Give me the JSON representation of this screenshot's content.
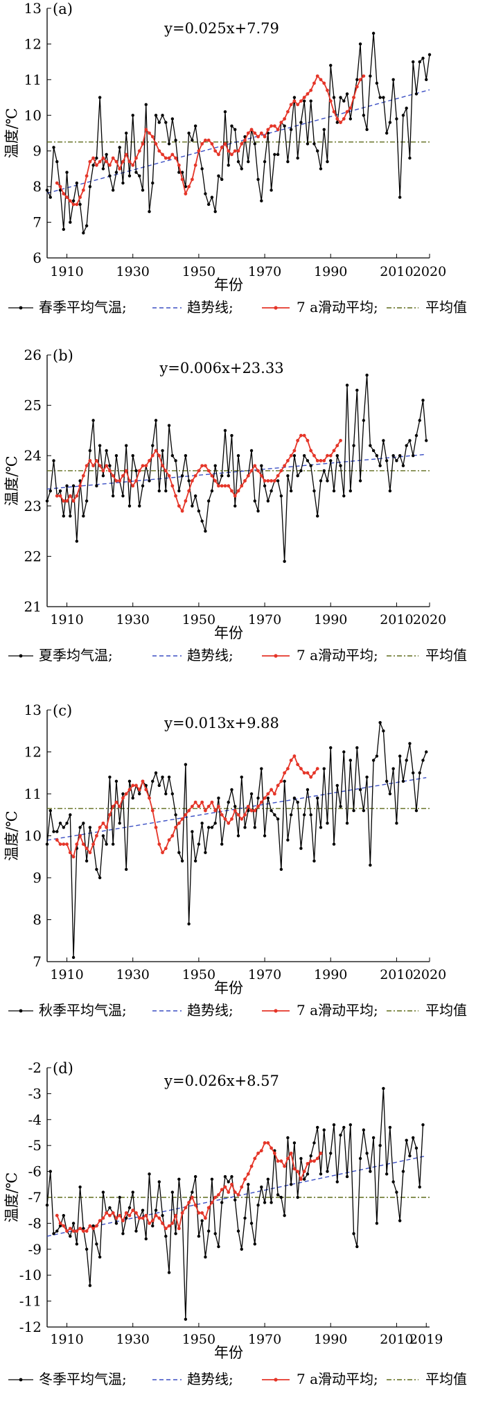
{
  "chart_data": [
    {
      "type": "line",
      "panel_label": "(a)",
      "equation": "y=0.025x+7.79",
      "xlabel": "年份",
      "ylabel": "温度/℃",
      "ylim": [
        6,
        13
      ],
      "yticks": [
        6,
        7,
        8,
        9,
        10,
        11,
        12,
        13
      ],
      "xlim": [
        1904,
        2020
      ],
      "xticks": [
        {
          "v": 1910,
          "t": "1910"
        },
        {
          "v": 1930,
          "t": "1930"
        },
        {
          "v": 1950,
          "t": "1950"
        },
        {
          "v": 1970,
          "t": "1970"
        },
        {
          "v": 1990,
          "t": "1990"
        },
        {
          "v": 2010,
          "t": "2010"
        },
        {
          "v": 2020,
          "t": "2020"
        }
      ],
      "mean": 9.25,
      "trend": {
        "slope": 0.025,
        "intercept": 7.79
      },
      "legend": [
        "春季平均气温;",
        "趋势线;",
        "7 a滑动平均;",
        "平均值"
      ],
      "series": [
        {
          "name": "春季平均气温",
          "x_start": 1904,
          "values": [
            7.9,
            7.7,
            9.1,
            8.7,
            7.9,
            6.8,
            8.4,
            7.0,
            7.6,
            8.1,
            7.5,
            6.7,
            6.9,
            8.0,
            8.6,
            8.8,
            10.5,
            8.5,
            8.9,
            8.3,
            7.9,
            8.4,
            9.1,
            8.1,
            9.5,
            8.3,
            10.0,
            8.4,
            8.3,
            7.9,
            10.3,
            7.3,
            8.1,
            10.0,
            9.8,
            10.0,
            9.8,
            9.2,
            9.9,
            9.3,
            8.4,
            8.4,
            8.0,
            9.5,
            9.3,
            9.7,
            9.0,
            8.5,
            7.8,
            7.5,
            7.7,
            7.3,
            8.3,
            8.2,
            10.1,
            8.6,
            9.7,
            9.6,
            8.7,
            8.5,
            9.4,
            8.7,
            9.6,
            9.2,
            8.2,
            7.6,
            8.7,
            9.5,
            7.9,
            8.9,
            8.9,
            9.8,
            9.7,
            8.7,
            9.6,
            10.5,
            8.8,
            9.8,
            10.4,
            9.2,
            10.4,
            9.2,
            9.0,
            8.5,
            9.6,
            8.7,
            11.4,
            10.5,
            9.8,
            10.5,
            10.4,
            10.6,
            9.9,
            10.5,
            11.0,
            12.0,
            10.0,
            9.6,
            11.1,
            12.3,
            10.9,
            10.5,
            10.5,
            9.5,
            9.8,
            11.0,
            9.9,
            7.7,
            10.0,
            10.2,
            8.8,
            11.5,
            10.6,
            11.5,
            11.6,
            11.0,
            11.7
          ]
        },
        {
          "name": "7 a滑动平均",
          "x_start": 1907,
          "values": [
            8.1,
            8.0,
            7.8,
            7.7,
            7.6,
            7.5,
            7.5,
            7.7,
            7.9,
            8.3,
            8.7,
            8.8,
            8.6,
            8.7,
            8.8,
            8.7,
            8.6,
            8.8,
            8.7,
            8.5,
            8.7,
            8.9,
            8.7,
            8.6,
            8.8,
            9.0,
            9.2,
            9.6,
            9.5,
            9.4,
            9.2,
            9.0,
            8.9,
            8.8,
            8.8,
            8.9,
            8.8,
            8.6,
            8.2,
            7.8,
            8.0,
            8.2,
            8.6,
            9.0,
            9.2,
            9.3,
            9.3,
            9.2,
            9.0,
            8.9,
            9.1,
            9.2,
            9.0,
            8.9,
            9.0,
            9.0,
            9.2,
            9.3,
            9.5,
            9.6,
            9.5,
            9.4,
            9.5,
            9.4,
            9.6,
            9.7,
            9.7,
            9.6,
            9.8,
            9.9,
            10.1,
            10.3,
            10.4,
            10.3,
            10.4,
            10.5,
            10.6,
            10.7,
            10.9,
            11.1,
            11.0,
            10.9,
            10.7,
            10.4,
            10.1,
            9.9,
            9.8,
            9.9,
            10.1,
            10.2,
            10.5,
            10.8,
            11.0,
            11.1
          ]
        }
      ]
    },
    {
      "type": "line",
      "panel_label": "(b)",
      "equation": "y=0.006x+23.33",
      "xlabel": "年份",
      "ylabel": "温度/℃",
      "ylim": [
        21,
        26
      ],
      "yticks": [
        21,
        22,
        23,
        24,
        25,
        26
      ],
      "xlim": [
        1904,
        2020
      ],
      "xticks": [
        {
          "v": 1910,
          "t": "1910"
        },
        {
          "v": 1930,
          "t": "1930"
        },
        {
          "v": 1950,
          "t": "1950"
        },
        {
          "v": 1970,
          "t": "1970"
        },
        {
          "v": 1990,
          "t": "1990"
        },
        {
          "v": 2010,
          "t": "2010"
        },
        {
          "v": 2020,
          "t": "2020"
        }
      ],
      "mean": 23.7,
      "trend": {
        "slope": 0.006,
        "intercept": 23.33
      },
      "legend": [
        "夏季均气温;",
        "趋势线;",
        "7 a滑动平均;",
        "平均值"
      ],
      "series": [
        {
          "name": "夏季均气温",
          "x_start": 1904,
          "values": [
            23.1,
            23.3,
            23.9,
            23.2,
            23.3,
            22.8,
            23.4,
            22.8,
            23.4,
            22.3,
            23.5,
            22.8,
            23.1,
            24.1,
            24.7,
            23.4,
            24.2,
            23.6,
            24.1,
            23.8,
            23.2,
            24.0,
            23.5,
            23.2,
            24.2,
            23.0,
            24.0,
            23.7,
            23.0,
            23.4,
            23.8,
            23.5,
            24.2,
            24.7,
            23.3,
            24.1,
            23.3,
            24.6,
            24.0,
            23.9,
            23.3,
            23.6,
            24.0,
            23.5,
            23.0,
            23.2,
            22.9,
            22.7,
            22.5,
            23.1,
            23.3,
            23.8,
            23.4,
            23.6,
            24.5,
            23.6,
            24.4,
            23.0,
            24.0,
            23.4,
            23.5,
            23.6,
            24.1,
            23.1,
            22.9,
            23.8,
            23.4,
            23.1,
            23.3,
            23.5,
            23.5,
            23.2,
            21.9,
            23.6,
            23.3,
            24.0,
            23.6,
            23.7,
            24.0,
            23.9,
            23.8,
            23.3,
            22.8,
            23.5,
            23.7,
            23.5,
            23.9,
            23.3,
            24.0,
            23.8,
            23.2,
            25.4,
            23.3,
            24.2,
            25.3,
            23.5,
            24.7,
            25.6,
            24.2,
            24.1,
            24.0,
            23.8,
            24.3,
            23.9,
            23.3,
            24.0,
            23.9,
            24.0,
            23.8,
            24.2,
            24.3,
            24.0,
            24.4,
            24.7,
            25.1,
            24.3
          ]
        },
        {
          "name": "7 a滑动平均",
          "x_start": 1907,
          "values": [
            23.2,
            23.2,
            23.1,
            23.1,
            23.2,
            23.1,
            23.2,
            23.4,
            23.6,
            23.8,
            23.9,
            23.8,
            23.9,
            23.8,
            23.7,
            23.8,
            23.7,
            23.6,
            23.5,
            23.5,
            23.6,
            23.7,
            23.5,
            23.4,
            23.5,
            23.7,
            23.8,
            23.8,
            23.9,
            24.0,
            24.1,
            24.0,
            23.8,
            23.7,
            23.6,
            23.4,
            23.2,
            23.0,
            22.9,
            23.1,
            23.3,
            23.5,
            23.6,
            23.7,
            23.8,
            23.8,
            23.7,
            23.6,
            23.5,
            23.4,
            23.4,
            23.4,
            23.4,
            23.3,
            23.2,
            23.3,
            23.4,
            23.5,
            23.6,
            23.7,
            23.8,
            23.7,
            23.6,
            23.5,
            23.5,
            23.5,
            23.5,
            23.6,
            23.7,
            23.8,
            23.9,
            24.0,
            24.1,
            24.3,
            24.4,
            24.4,
            24.3,
            24.1,
            24.0,
            23.9,
            23.9,
            23.9,
            24.0,
            24.0,
            24.1,
            24.2,
            24.3
          ]
        }
      ]
    },
    {
      "type": "line",
      "panel_label": "(c)",
      "equation": "y=0.013x+9.88",
      "xlabel": "年份",
      "ylabel": "温度/℃",
      "ylim": [
        7,
        13
      ],
      "yticks": [
        7,
        8,
        9,
        10,
        11,
        12,
        13
      ],
      "xlim": [
        1904,
        2020
      ],
      "xticks": [
        {
          "v": 1910,
          "t": "1910"
        },
        {
          "v": 1930,
          "t": "1930"
        },
        {
          "v": 1950,
          "t": "1950"
        },
        {
          "v": 1970,
          "t": "1970"
        },
        {
          "v": 1990,
          "t": "1990"
        },
        {
          "v": 2010,
          "t": "2010"
        },
        {
          "v": 2020,
          "t": "2020"
        }
      ],
      "mean": 10.65,
      "trend": {
        "slope": 0.013,
        "intercept": 9.88
      },
      "legend": [
        "秋季平均气温;",
        "趋势线;",
        "7 a滑动平均;",
        "平均值"
      ],
      "series": [
        {
          "name": "秋季平均气温",
          "x_start": 1904,
          "values": [
            9.8,
            10.6,
            10.1,
            10.1,
            10.3,
            10.2,
            10.3,
            10.5,
            7.1,
            9.7,
            10.2,
            10.3,
            9.4,
            10.2,
            9.8,
            9.2,
            9.0,
            10.0,
            9.8,
            11.4,
            9.8,
            11.3,
            10.3,
            11.0,
            9.2,
            11.3,
            10.9,
            11.2,
            11.0,
            11.3,
            11.2,
            10.9,
            11.3,
            11.5,
            11.2,
            11.4,
            11.0,
            11.4,
            11.0,
            10.5,
            9.6,
            9.4,
            11.7,
            7.9,
            10.1,
            9.4,
            9.8,
            10.3,
            9.6,
            10.2,
            10.2,
            10.3,
            10.9,
            9.8,
            10.4,
            10.8,
            11.1,
            10.7,
            10.0,
            11.4,
            10.2,
            10.6,
            11.0,
            10.2,
            10.9,
            11.6,
            10.0,
            10.9,
            10.6,
            10.5,
            10.4,
            9.2,
            11.3,
            9.9,
            10.5,
            10.9,
            10.8,
            9.7,
            10.5,
            11.1,
            10.5,
            9.4,
            10.9,
            10.2,
            11.6,
            10.3,
            12.1,
            9.8,
            11.2,
            10.7,
            12.0,
            10.3,
            11.8,
            10.6,
            12.1,
            11.1,
            10.6,
            11.4,
            9.3,
            11.8,
            11.9,
            12.7,
            12.5,
            11.3,
            11.0,
            11.6,
            10.3,
            11.9,
            11.3,
            11.8,
            12.2,
            11.5,
            10.6,
            11.5,
            11.8,
            12.0
          ]
        },
        {
          "name": "7 a滑动平均",
          "x_start": 1907,
          "values": [
            9.9,
            9.8,
            9.8,
            9.8,
            9.6,
            9.5,
            9.8,
            10.0,
            9.8,
            9.7,
            9.6,
            9.8,
            10.0,
            10.2,
            10.3,
            10.2,
            10.5,
            10.7,
            10.8,
            10.7,
            10.9,
            11.0,
            11.1,
            11.2,
            11.2,
            11.1,
            11.3,
            11.1,
            10.9,
            10.6,
            10.2,
            9.8,
            9.6,
            9.7,
            9.9,
            10.0,
            10.2,
            10.3,
            10.4,
            10.5,
            10.6,
            10.7,
            10.8,
            10.7,
            10.8,
            10.6,
            10.7,
            10.8,
            10.6,
            10.7,
            10.5,
            10.4,
            10.3,
            10.4,
            10.6,
            10.5,
            10.4,
            10.5,
            10.7,
            10.6,
            10.6,
            10.7,
            10.8,
            10.9,
            11.0,
            11.1,
            11.0,
            11.2,
            11.3,
            11.5,
            11.6,
            11.8,
            11.9,
            11.7,
            11.6,
            11.5,
            11.5,
            11.4,
            11.5,
            11.6
          ]
        }
      ]
    },
    {
      "type": "line",
      "panel_label": "(d)",
      "equation": "y=0.026x+8.57",
      "xlabel": "年份",
      "ylabel": "温度/℃",
      "ylim": [
        -12,
        -2
      ],
      "yticks": [
        -12,
        -11,
        -10,
        -9,
        -8,
        -7,
        -6,
        -5,
        -4,
        -3,
        -2
      ],
      "xlim": [
        1904,
        2020
      ],
      "xticks": [
        {
          "v": 1910,
          "t": "1910"
        },
        {
          "v": 1930,
          "t": "1930"
        },
        {
          "v": 1950,
          "t": "1950"
        },
        {
          "v": 1970,
          "t": "1970"
        },
        {
          "v": 1990,
          "t": "1990"
        },
        {
          "v": 2010,
          "t": "2010"
        },
        {
          "v": 2019,
          "t": "2019"
        }
      ],
      "mean": -7.0,
      "trend_points": [
        [
          1904,
          -8.5
        ],
        [
          2019,
          -5.4
        ]
      ],
      "legend": [
        "冬季平均气温;",
        "趋势线;",
        "7 a滑动平均;",
        "平均值"
      ],
      "series": [
        {
          "name": "冬季平均气温",
          "x_start": 1904,
          "values": [
            -7.3,
            -6.0,
            -8.4,
            -8.3,
            -8.1,
            -7.7,
            -8.3,
            -8.5,
            -8.0,
            -8.8,
            -6.6,
            -8.2,
            -9.0,
            -10.4,
            -8.1,
            -8.8,
            -9.3,
            -6.8,
            -7.6,
            -7.4,
            -7.6,
            -8.0,
            -7.0,
            -8.4,
            -7.8,
            -7.4,
            -6.8,
            -8.3,
            -7.8,
            -7.5,
            -8.6,
            -6.1,
            -8.1,
            -7.5,
            -6.4,
            -7.7,
            -8.5,
            -9.9,
            -6.8,
            -8.4,
            -6.3,
            -7.6,
            -11.7,
            -7.2,
            -6.8,
            -6.2,
            -8.5,
            -7.9,
            -9.3,
            -8.3,
            -6.3,
            -8.4,
            -8.9,
            -7.2,
            -6.2,
            -6.4,
            -6.2,
            -7.1,
            -8.3,
            -9.0,
            -7.8,
            -6.5,
            -8.0,
            -8.8,
            -7.3,
            -6.6,
            -7.2,
            -6.3,
            -7.2,
            -5.2,
            -6.9,
            -7.0,
            -7.7,
            -4.7,
            -6.5,
            -4.9,
            -7.0,
            -5.5,
            -6.3,
            -6.1,
            -5.4,
            -4.9,
            -4.3,
            -6.1,
            -4.4,
            -6.0,
            -5.3,
            -4.2,
            -6.4,
            -4.6,
            -4.3,
            -6.2,
            -4.2,
            -8.4,
            -8.9,
            -5.5,
            -4.4,
            -5.3,
            -6.0,
            -4.7,
            -8.0,
            -5.0,
            -2.8,
            -6.1,
            -4.3,
            -6.4,
            -6.8,
            -7.9,
            -6.0,
            -4.8,
            -5.4,
            -4.7,
            -5.1,
            -6.6,
            -4.2
          ]
        },
        {
          "name": "7 a滑动平均",
          "x_start": 1907,
          "values": [
            -7.7,
            -8.0,
            -8.1,
            -8.3,
            -8.2,
            -8.3,
            -8.3,
            -8.2,
            -8.3,
            -8.3,
            -8.1,
            -8.2,
            -8.1,
            -7.9,
            -7.8,
            -7.6,
            -7.7,
            -7.6,
            -7.8,
            -7.7,
            -7.9,
            -7.6,
            -7.7,
            -7.5,
            -7.6,
            -7.8,
            -7.8,
            -7.7,
            -8.0,
            -7.9,
            -7.7,
            -7.8,
            -8.0,
            -8.2,
            -8.1,
            -8.0,
            -7.7,
            -8.2,
            -7.6,
            -7.4,
            -7.2,
            -7.0,
            -7.3,
            -7.6,
            -7.6,
            -7.8,
            -7.4,
            -7.2,
            -7.0,
            -6.9,
            -6.7,
            -6.6,
            -6.8,
            -6.5,
            -6.8,
            -6.9,
            -6.6,
            -6.3,
            -6.1,
            -5.8,
            -5.5,
            -5.3,
            -5.2,
            -4.9,
            -4.9,
            -5.1,
            -5.3,
            -5.6,
            -5.6,
            -5.8,
            -5.5,
            -5.3,
            -5.9,
            -6.0,
            -6.3,
            -6.0,
            -5.7,
            -5.6,
            -5.6,
            -5.5,
            -5.3
          ]
        }
      ]
    }
  ]
}
